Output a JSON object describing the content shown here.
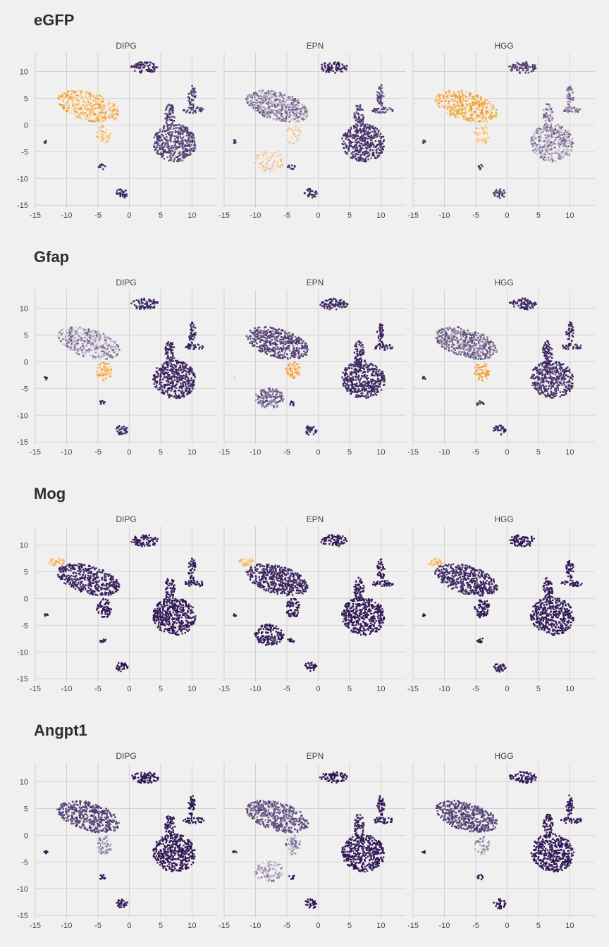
{
  "chart_data": {
    "type": "scatter",
    "plot": "umap-feature",
    "panels": [
      "DIPG",
      "EPN",
      "HGG"
    ],
    "genes": [
      "eGFP",
      "Gfap",
      "Mog",
      "Angpt1"
    ],
    "xlim": [
      -15,
      14
    ],
    "ylim": [
      -15.5,
      13.5
    ],
    "x_ticks": [
      -15,
      -10,
      -5,
      0,
      5,
      10
    ],
    "x_tick_labels": [
      "-15",
      "-10",
      "-5",
      "0",
      "5",
      "10"
    ],
    "y_ticks": [
      -15,
      -10,
      -5,
      0,
      5,
      10
    ],
    "y_tick_labels": [
      "-15",
      "-10",
      "-5",
      "0",
      "5",
      "10"
    ],
    "grid": true,
    "legend": "none",
    "colors": {
      "low": "#2a1150",
      "mid": "#ffffff",
      "high": "#f09820",
      "background": "#f0f0f0"
    },
    "clusters": [
      {
        "id": "top-island",
        "cx": 2.5,
        "cy": 10.8,
        "rx": 2.2,
        "ry": 1.1
      },
      {
        "id": "big-left",
        "cx": -6.5,
        "cy": 3.5,
        "rx": 5.2,
        "ry": 2.6,
        "rot": -20
      },
      {
        "id": "left-tail",
        "cx": -4.0,
        "cy": -1.8,
        "rx": 1.2,
        "ry": 1.8
      },
      {
        "id": "epn-mass",
        "cx": -7.8,
        "cy": -6.8,
        "rx": 2.3,
        "ry": 2.0
      },
      {
        "id": "right-big",
        "cx": 7.2,
        "cy": -3.3,
        "rx": 3.4,
        "ry": 3.6,
        "rot": 25
      },
      {
        "id": "right-arm",
        "cx": 6.5,
        "cy": 1.8,
        "rx": 0.8,
        "ry": 2.2
      },
      {
        "id": "right-upper",
        "cx": 10.3,
        "cy": 2.8,
        "rx": 1.7,
        "ry": 0.6
      },
      {
        "id": "right-spike",
        "cx": 10.0,
        "cy": 5.5,
        "rx": 0.6,
        "ry": 2.0
      },
      {
        "id": "bottom-island",
        "cx": -1.2,
        "cy": -12.8,
        "rx": 1.0,
        "ry": 0.9
      },
      {
        "id": "small-1",
        "cx": -4.3,
        "cy": -7.8,
        "rx": 0.6,
        "ry": 0.5
      },
      {
        "id": "small-2",
        "cx": -13.3,
        "cy": -3.1,
        "rx": 0.3,
        "ry": 0.3
      }
    ],
    "expression": {
      "eGFP": {
        "DIPG": {
          "top-island": 0.05,
          "big-left": 0.8,
          "left-tail": 0.7,
          "epn-mass": 0,
          "right-big": 0.12,
          "right-arm": 0.1,
          "right-upper": 0.1,
          "right-spike": 0.1,
          "bottom-island": 0.05,
          "small-1": 0.05,
          "small-2": 0.05
        },
        "EPN": {
          "top-island": 0.05,
          "big-left": 0.25,
          "left-tail": 0.6,
          "epn-mass": 0.6,
          "right-big": 0.08,
          "right-arm": 0.1,
          "right-upper": 0.1,
          "right-spike": 0.1,
          "bottom-island": 0.05,
          "small-1": 0.05,
          "small-2": 0.05
        },
        "HGG": {
          "top-island": 0.1,
          "big-left": 0.85,
          "left-tail": 0.7,
          "epn-mass": 0,
          "right-big": 0.28,
          "right-arm": 0.25,
          "right-upper": 0.25,
          "right-spike": 0.2,
          "bottom-island": 0.1,
          "small-1": 0.1,
          "small-2": 0.1
        }
      },
      "Gfap": {
        "DIPG": {
          "top-island": 0.05,
          "big-left": 0.3,
          "left-tail": 0.85,
          "epn-mass": 0,
          "right-big": 0.05,
          "right-arm": 0.05,
          "right-upper": 0.05,
          "right-spike": 0.05,
          "bottom-island": 0.05,
          "small-1": 0.05,
          "small-2": 0.05
        },
        "EPN": {
          "top-island": 0.05,
          "big-left": 0.12,
          "left-tail": 0.85,
          "epn-mass": 0.2,
          "right-big": 0.05,
          "right-arm": 0.05,
          "right-upper": 0.05,
          "right-spike": 0.05,
          "bottom-island": 0.05,
          "small-1": 0.05,
          "small-2": 0.5
        },
        "HGG": {
          "top-island": 0.05,
          "big-left": 0.2,
          "left-tail": 0.9,
          "epn-mass": 0,
          "right-big": 0.08,
          "right-arm": 0.05,
          "right-upper": 0.05,
          "right-spike": 0.05,
          "bottom-island": 0.05,
          "small-1": 0.05,
          "small-2": 0.05
        }
      },
      "Mog": {
        "DIPG": {
          "top-island": 0.02,
          "big-left": 0.05,
          "left-tail": 0.02,
          "epn-mass": 0,
          "right-big": 0.02,
          "right-arm": 0.02,
          "right-upper": 0.02,
          "right-spike": 0.02,
          "bottom-island": 0.02,
          "small-1": 0.02,
          "small-2": 0.02
        },
        "EPN": {
          "top-island": 0.02,
          "big-left": 0.05,
          "left-tail": 0.02,
          "epn-mass": 0.02,
          "right-big": 0.02,
          "right-arm": 0.02,
          "right-upper": 0.02,
          "right-spike": 0.02,
          "bottom-island": 0.02,
          "small-1": 0.02,
          "small-2": 0.02
        },
        "HGG": {
          "top-island": 0.02,
          "big-left": 0.05,
          "left-tail": 0.02,
          "epn-mass": 0,
          "right-big": 0.02,
          "right-arm": 0.02,
          "right-upper": 0.02,
          "right-spike": 0.02,
          "bottom-island": 0.02,
          "small-1": 0.02,
          "small-2": 0.02
        }
      },
      "Angpt1": {
        "DIPG": {
          "top-island": 0.02,
          "big-left": 0.12,
          "left-tail": 0.3,
          "epn-mass": 0,
          "right-big": 0.02,
          "right-arm": 0.02,
          "right-upper": 0.02,
          "right-spike": 0.02,
          "bottom-island": 0.02,
          "small-1": 0.02,
          "small-2": 0.02
        },
        "EPN": {
          "top-island": 0.02,
          "big-left": 0.15,
          "left-tail": 0.3,
          "epn-mass": 0.35,
          "right-big": 0.02,
          "right-arm": 0.05,
          "right-upper": 0.02,
          "right-spike": 0.02,
          "bottom-island": 0.02,
          "small-1": 0.02,
          "small-2": 0.02
        },
        "HGG": {
          "top-island": 0.02,
          "big-left": 0.12,
          "left-tail": 0.35,
          "epn-mass": 0,
          "right-big": 0.02,
          "right-arm": 0.02,
          "right-upper": 0.02,
          "right-spike": 0.02,
          "bottom-island": 0.02,
          "small-1": 0.02,
          "small-2": 0.02
        }
      }
    },
    "hotspots": {
      "Mog": {
        "cx": -11.5,
        "cy": 6.8,
        "rx": 1.3,
        "ry": 0.7,
        "value": 0.95
      }
    }
  }
}
